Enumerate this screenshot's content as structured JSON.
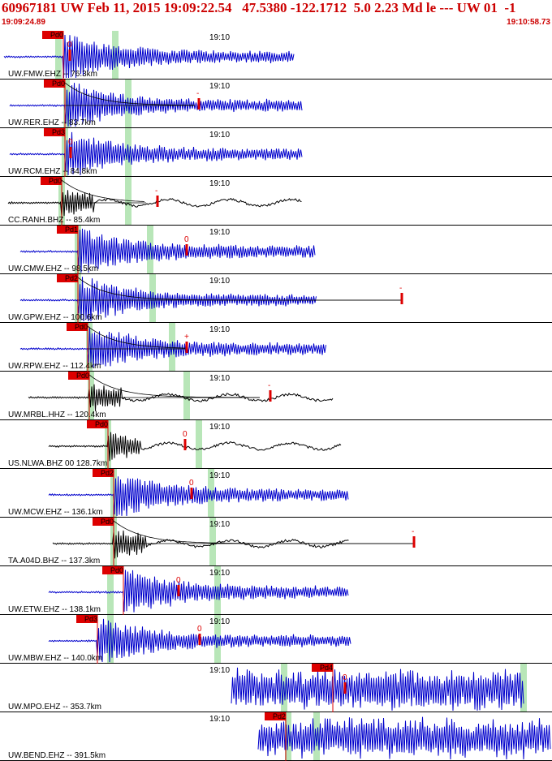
{
  "header": {
    "title": "60967181 UW Feb 11, 2015 19:09:22.54   47.5380 -122.1712  5.0 2.23 Md le --- UW 01  -1",
    "start_time": "19:09:24.89",
    "end_time": "19:10:58.73"
  },
  "colors": {
    "accent": "#cc0000",
    "trace_blue": "#0000cc",
    "trace_black": "#000000",
    "window_green": "#b8e6b8",
    "pick_red": "#dd0000"
  },
  "minute_tick_label": "19:10",
  "traces": [
    {
      "label": "UW.FMW.EHZ -- 76.3km",
      "color": "blue",
      "pick_text": "Pd0",
      "coda_mark": "0",
      "decay": false
    },
    {
      "label": "UW.RER.EHZ -- 83.7km",
      "color": "blue",
      "pick_text": "Pd0",
      "coda_mark": "-",
      "decay": true
    },
    {
      "label": "UW.RCM.EHZ -- 84.8km",
      "color": "blue",
      "pick_text": "Pd3",
      "coda_mark": "0",
      "decay": false
    },
    {
      "label": "CC.RANH.BHZ -- 85.4km",
      "color": "black",
      "pick_text": "Pd0",
      "coda_mark": "-",
      "decay": true
    },
    {
      "label": "UW.CMW.EHZ -- 98.5km",
      "color": "blue",
      "pick_text": "Pd1",
      "coda_mark": "0",
      "decay": false
    },
    {
      "label": "UW.GPW.EHZ -- 100.6km",
      "color": "blue",
      "pick_text": "Pd2",
      "coda_mark": "-",
      "decay": true
    },
    {
      "label": "UW.RPW.EHZ -- 112.4km",
      "color": "blue",
      "pick_text": "Pd0",
      "coda_mark": "+",
      "decay": true
    },
    {
      "label": "UW.MRBL.HHZ -- 120.4km",
      "color": "black",
      "pick_text": "Pd0",
      "coda_mark": "-",
      "decay": true
    },
    {
      "label": "US.NLWA.BHZ 00 128.7km",
      "color": "black",
      "pick_text": "Pd0",
      "coda_mark": "0",
      "decay": false
    },
    {
      "label": "UW.MCW.EHZ -- 136.1km",
      "color": "blue",
      "pick_text": "Pd2",
      "coda_mark": "0",
      "decay": false
    },
    {
      "label": "TA.A04D.BHZ -- 137.3km",
      "color": "black",
      "pick_text": "Pd0",
      "coda_mark": "-",
      "decay": true
    },
    {
      "label": "UW.ETW.EHZ -- 138.1km",
      "color": "blue",
      "pick_text": "Pd0",
      "coda_mark": "0",
      "decay": false
    },
    {
      "label": "UW.MBW.EHZ -- 140.0km",
      "color": "blue",
      "pick_text": "Pd3",
      "coda_mark": "0",
      "decay": false
    },
    {
      "label": "UW.MPO.EHZ -- 353.7km",
      "color": "blue",
      "pick_text": "Pd4",
      "coda_mark": "0",
      "decay": false
    },
    {
      "label": "UW.BEND.EHZ -- 391.5km",
      "color": "blue",
      "pick_text": "Pd2",
      "coda_mark": "",
      "decay": false
    }
  ]
}
